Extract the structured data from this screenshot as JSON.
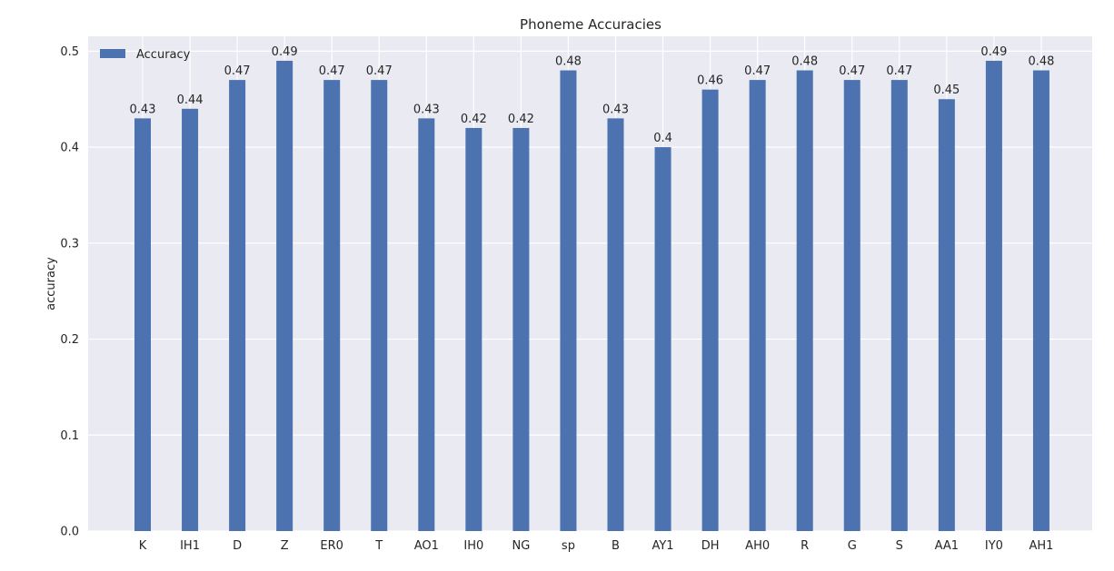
{
  "chart_data": {
    "type": "bar",
    "title": "Phoneme Accuracies",
    "xlabel": "",
    "ylabel": "accuracy",
    "categories": [
      "K",
      "IH1",
      "D",
      "Z",
      "ER0",
      "T",
      "AO1",
      "IH0",
      "NG",
      "sp",
      "B",
      "AY1",
      "DH",
      "AH0",
      "R",
      "G",
      "S",
      "AA1",
      "IY0",
      "AH1"
    ],
    "series": [
      {
        "name": "Accuracy",
        "values": [
          0.43,
          0.44,
          0.47,
          0.49,
          0.47,
          0.47,
          0.43,
          0.42,
          0.42,
          0.48,
          0.43,
          0.4,
          0.46,
          0.47,
          0.48,
          0.47,
          0.47,
          0.45,
          0.49,
          0.48
        ],
        "labels": [
          "0.43",
          "0.44",
          "0.47",
          "0.49",
          "0.47",
          "0.47",
          "0.43",
          "0.42",
          "0.42",
          "0.48",
          "0.43",
          "0.4",
          "0.46",
          "0.47",
          "0.48",
          "0.47",
          "0.47",
          "0.45",
          "0.49",
          "0.48"
        ],
        "color": "#4c72b0"
      }
    ],
    "ylim": [
      0,
      0.5
    ],
    "yticks": [
      "0.0",
      "0.1",
      "0.2",
      "0.3",
      "0.4",
      "0.5"
    ],
    "grid": true,
    "legend_position": "top-left",
    "colors": {
      "background": "#eaeaf2",
      "grid": "#ffffff",
      "bar": "#4c72b0"
    }
  }
}
